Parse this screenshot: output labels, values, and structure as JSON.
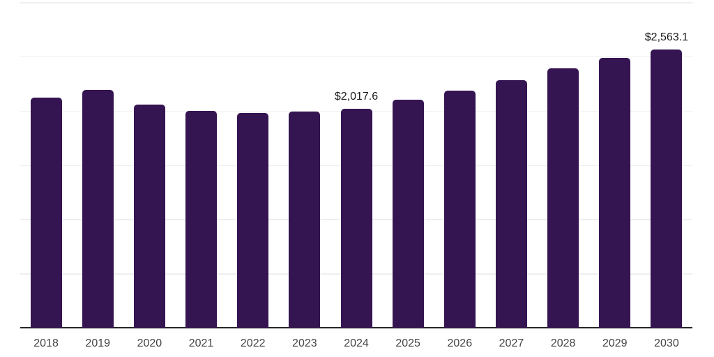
{
  "chart_data": {
    "type": "bar",
    "categories": [
      "2018",
      "2019",
      "2020",
      "2021",
      "2022",
      "2023",
      "2024",
      "2025",
      "2026",
      "2027",
      "2028",
      "2029",
      "2030"
    ],
    "values": [
      2120,
      2191,
      2056,
      1998,
      1979,
      1991,
      2017.6,
      2101,
      2184,
      2281,
      2390,
      2489,
      2563.1
    ],
    "data_labels": [
      "",
      "",
      "",
      "",
      "",
      "",
      "$2,017.6",
      "",
      "",
      "",
      "",
      "",
      "$2,563.1"
    ],
    "ylim": [
      0,
      3000
    ],
    "gridline_step": 500,
    "grid": true,
    "legend": false,
    "currency_unit": "$",
    "colors": {
      "bar": "#351452",
      "axis_line": "#262626",
      "gridline": "#efefef",
      "x_tick_label": "#444444",
      "data_label": "#1a1a1a",
      "background": "#ffffff"
    }
  }
}
